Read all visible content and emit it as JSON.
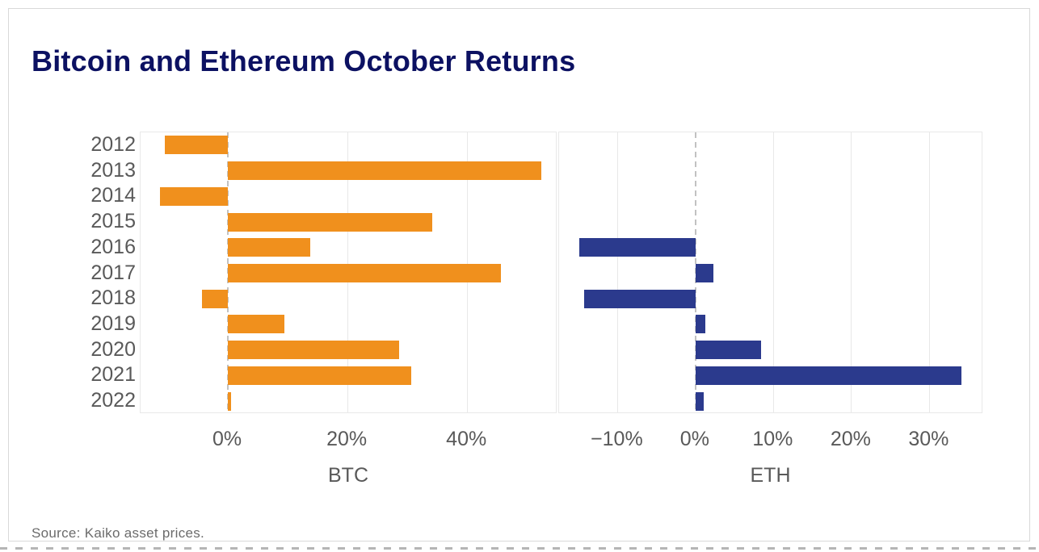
{
  "title": "Bitcoin and Ethereum October Returns",
  "source": "Source: Kaiko asset prices.",
  "colors": {
    "title_text": "#0c1162",
    "axis_text": "#595959",
    "btc_bar": "#f0901d",
    "eth_bar": "#2b3a8d",
    "gridline": "#e8e8e8",
    "zero_line": "#c2c2c2",
    "card_border": "#d9d9d9"
  },
  "chart_data": {
    "type": "bar",
    "orientation": "horizontal",
    "title": "Bitcoin and Ethereum October Returns",
    "unit": "%",
    "grid": true,
    "categories": [
      "2012",
      "2013",
      "2014",
      "2015",
      "2016",
      "2017",
      "2018",
      "2019",
      "2020",
      "2021",
      "2022"
    ],
    "series": [
      {
        "name": "BTC",
        "color": "#f0901d",
        "values": [
          -10.6,
          52.4,
          -11.4,
          34.1,
          13.8,
          45.7,
          -4.4,
          9.5,
          28.6,
          30.7,
          0.5
        ]
      },
      {
        "name": "ETH",
        "color": "#2b3a8d",
        "values": [
          null,
          null,
          null,
          null,
          -14.9,
          2.3,
          -14.3,
          1.3,
          8.4,
          34.1,
          1.1
        ]
      }
    ],
    "panels": [
      {
        "xlabel": "BTC",
        "xlim": [
          -14.6,
          55.1
        ],
        "ticks": [
          0,
          20,
          40
        ],
        "tick_labels": [
          "0%",
          "20%",
          "40%"
        ]
      },
      {
        "xlabel": "ETH",
        "xlim": [
          -17.5,
          36.9
        ],
        "ticks": [
          -10,
          0,
          10,
          20,
          30
        ],
        "tick_labels": [
          "−10%",
          "0%",
          "10%",
          "20%",
          "30%"
        ]
      }
    ]
  }
}
